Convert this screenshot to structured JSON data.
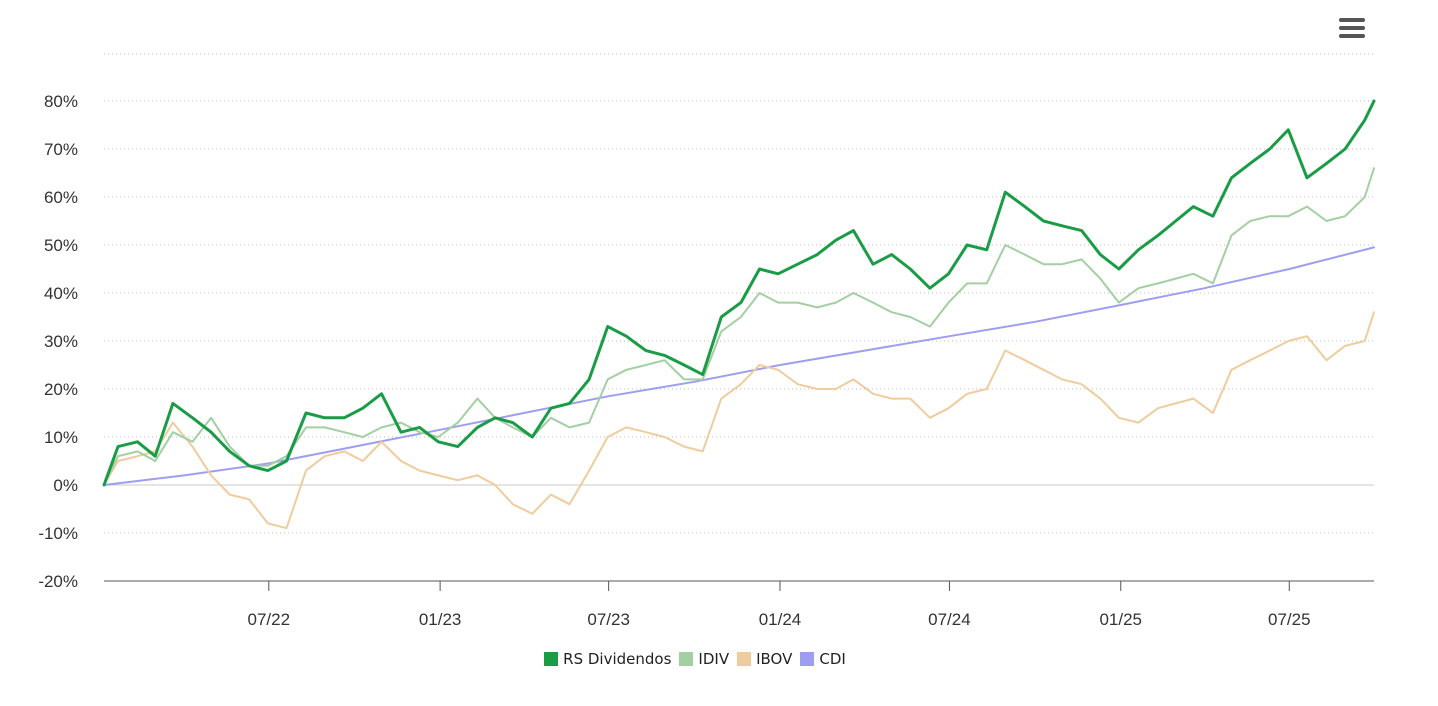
{
  "chart_data": {
    "type": "line",
    "ylim": [
      -20,
      80
    ],
    "y_ticks": [
      "-20%",
      "-10%",
      "0%",
      "10%",
      "20%",
      "30%",
      "40%",
      "50%",
      "60%",
      "70%",
      "80%"
    ],
    "y_tick_values": [
      -20,
      -10,
      0,
      10,
      20,
      30,
      40,
      50,
      60,
      70,
      80
    ],
    "x_ticks": [
      "07/22",
      "01/23",
      "07/23",
      "01/24",
      "07/24",
      "01/25",
      "07/25"
    ],
    "x_tick_values": [
      "2022-07-01",
      "2023-01-01",
      "2023-07-01",
      "2024-01-01",
      "2024-07-01",
      "2025-01-01",
      "2025-07-01"
    ],
    "x_range": [
      "2022-01-05",
      "2025-09-30"
    ],
    "grid": true,
    "legend_position": "bottom-center",
    "series": [
      {
        "name": "RS Dividendos",
        "color": "#1a9c46",
        "width": 3,
        "x": [
          "2022-01-05",
          "2022-01-20",
          "2022-02-10",
          "2022-03-01",
          "2022-03-20",
          "2022-04-10",
          "2022-04-30",
          "2022-05-20",
          "2022-06-10",
          "2022-06-30",
          "2022-07-20",
          "2022-08-10",
          "2022-08-30",
          "2022-09-20",
          "2022-10-10",
          "2022-10-30",
          "2022-11-20",
          "2022-12-10",
          "2022-12-30",
          "2023-01-20",
          "2023-02-10",
          "2023-03-01",
          "2023-03-20",
          "2023-04-10",
          "2023-04-30",
          "2023-05-20",
          "2023-06-10",
          "2023-06-30",
          "2023-07-20",
          "2023-08-10",
          "2023-08-30",
          "2023-09-20",
          "2023-10-10",
          "2023-10-30",
          "2023-11-20",
          "2023-12-10",
          "2023-12-30",
          "2024-01-20",
          "2024-02-10",
          "2024-03-01",
          "2024-03-20",
          "2024-04-10",
          "2024-04-30",
          "2024-05-20",
          "2024-06-10",
          "2024-06-30",
          "2024-07-20",
          "2024-08-10",
          "2024-08-30",
          "2024-09-20",
          "2024-10-10",
          "2024-10-30",
          "2024-11-20",
          "2024-12-10",
          "2024-12-30",
          "2025-01-20",
          "2025-02-10",
          "2025-03-01",
          "2025-03-20",
          "2025-04-10",
          "2025-04-30",
          "2025-05-20",
          "2025-06-10",
          "2025-06-30",
          "2025-07-20",
          "2025-08-10",
          "2025-08-30",
          "2025-09-20",
          "2025-09-30"
        ],
        "values": [
          0,
          8,
          9,
          6,
          17,
          14,
          11,
          7,
          4,
          3,
          5,
          15,
          14,
          14,
          16,
          19,
          11,
          12,
          9,
          8,
          12,
          14,
          13,
          10,
          16,
          17,
          22,
          33,
          31,
          28,
          27,
          25,
          23,
          35,
          38,
          45,
          44,
          46,
          48,
          51,
          53,
          46,
          48,
          45,
          41,
          44,
          50,
          49,
          61,
          58,
          55,
          54,
          53,
          48,
          45,
          49,
          52,
          55,
          58,
          56,
          64,
          67,
          70,
          74,
          64,
          67,
          70,
          76,
          80
        ]
      },
      {
        "name": "IDIV",
        "color": "#a3cfa3",
        "width": 2,
        "x": [
          "2022-01-05",
          "2022-01-20",
          "2022-02-10",
          "2022-03-01",
          "2022-03-20",
          "2022-04-10",
          "2022-04-30",
          "2022-05-20",
          "2022-06-10",
          "2022-06-30",
          "2022-07-20",
          "2022-08-10",
          "2022-08-30",
          "2022-09-20",
          "2022-10-10",
          "2022-10-30",
          "2022-11-20",
          "2022-12-10",
          "2022-12-30",
          "2023-01-20",
          "2023-02-10",
          "2023-03-01",
          "2023-03-20",
          "2023-04-10",
          "2023-04-30",
          "2023-05-20",
          "2023-06-10",
          "2023-06-30",
          "2023-07-20",
          "2023-08-10",
          "2023-08-30",
          "2023-09-20",
          "2023-10-10",
          "2023-10-30",
          "2023-11-20",
          "2023-12-10",
          "2023-12-30",
          "2024-01-20",
          "2024-02-10",
          "2024-03-01",
          "2024-03-20",
          "2024-04-10",
          "2024-04-30",
          "2024-05-20",
          "2024-06-10",
          "2024-06-30",
          "2024-07-20",
          "2024-08-10",
          "2024-08-30",
          "2024-09-20",
          "2024-10-10",
          "2024-10-30",
          "2024-11-20",
          "2024-12-10",
          "2024-12-30",
          "2025-01-20",
          "2025-02-10",
          "2025-03-01",
          "2025-03-20",
          "2025-04-10",
          "2025-04-30",
          "2025-05-20",
          "2025-06-10",
          "2025-06-30",
          "2025-07-20",
          "2025-08-10",
          "2025-08-30",
          "2025-09-20",
          "2025-09-30"
        ],
        "values": [
          0,
          6,
          7,
          5,
          11,
          9,
          14,
          8,
          4,
          4,
          6,
          12,
          12,
          11,
          10,
          12,
          13,
          11,
          10,
          13,
          18,
          14,
          12,
          10,
          14,
          12,
          13,
          22,
          24,
          25,
          26,
          22,
          22,
          32,
          35,
          40,
          38,
          38,
          37,
          38,
          40,
          38,
          36,
          35,
          33,
          38,
          42,
          42,
          50,
          48,
          46,
          46,
          47,
          43,
          38,
          41,
          42,
          43,
          44,
          42,
          52,
          55,
          56,
          56,
          58,
          55,
          56,
          60,
          66
        ]
      },
      {
        "name": "IBOV",
        "color": "#efcc9d",
        "width": 2,
        "x": [
          "2022-01-05",
          "2022-01-20",
          "2022-02-10",
          "2022-03-01",
          "2022-03-20",
          "2022-04-10",
          "2022-04-30",
          "2022-05-20",
          "2022-06-10",
          "2022-06-30",
          "2022-07-20",
          "2022-08-10",
          "2022-08-30",
          "2022-09-20",
          "2022-10-10",
          "2022-10-30",
          "2022-11-20",
          "2022-12-10",
          "2022-12-30",
          "2023-01-20",
          "2023-02-10",
          "2023-03-01",
          "2023-03-20",
          "2023-04-10",
          "2023-04-30",
          "2023-05-20",
          "2023-06-10",
          "2023-06-30",
          "2023-07-20",
          "2023-08-10",
          "2023-08-30",
          "2023-09-20",
          "2023-10-10",
          "2023-10-30",
          "2023-11-20",
          "2023-12-10",
          "2023-12-30",
          "2024-01-20",
          "2024-02-10",
          "2024-03-01",
          "2024-03-20",
          "2024-04-10",
          "2024-04-30",
          "2024-05-20",
          "2024-06-10",
          "2024-06-30",
          "2024-07-20",
          "2024-08-10",
          "2024-08-30",
          "2024-09-20",
          "2024-10-10",
          "2024-10-30",
          "2024-11-20",
          "2024-12-10",
          "2024-12-30",
          "2025-01-20",
          "2025-02-10",
          "2025-03-01",
          "2025-03-20",
          "2025-04-10",
          "2025-04-30",
          "2025-05-20",
          "2025-06-10",
          "2025-06-30",
          "2025-07-20",
          "2025-08-10",
          "2025-08-30",
          "2025-09-20",
          "2025-09-30"
        ],
        "values": [
          0,
          5,
          6,
          7,
          13,
          8,
          2,
          -2,
          -3,
          -8,
          -9,
          3,
          6,
          7,
          5,
          9,
          5,
          3,
          2,
          1,
          2,
          0,
          -4,
          -6,
          -2,
          -4,
          3,
          10,
          12,
          11,
          10,
          8,
          7,
          18,
          21,
          25,
          24,
          21,
          20,
          20,
          22,
          19,
          18,
          18,
          14,
          16,
          19,
          20,
          28,
          26,
          24,
          22,
          21,
          18,
          14,
          13,
          16,
          17,
          18,
          15,
          24,
          26,
          28,
          30,
          31,
          26,
          29,
          30,
          36
        ]
      },
      {
        "name": "CDI",
        "color": "#9e9ef0",
        "width": 2,
        "x": [
          "2022-01-05",
          "2022-04-01",
          "2022-07-01",
          "2022-10-01",
          "2023-01-01",
          "2023-04-01",
          "2023-07-01",
          "2023-10-01",
          "2024-01-01",
          "2024-04-01",
          "2024-07-01",
          "2024-10-01",
          "2025-01-01",
          "2025-04-01",
          "2025-07-01",
          "2025-09-30"
        ],
        "values": [
          0,
          2,
          4.5,
          8,
          11.5,
          15,
          18.5,
          21.5,
          25,
          28,
          31,
          34,
          37.5,
          41,
          45,
          49.5
        ]
      }
    ]
  }
}
